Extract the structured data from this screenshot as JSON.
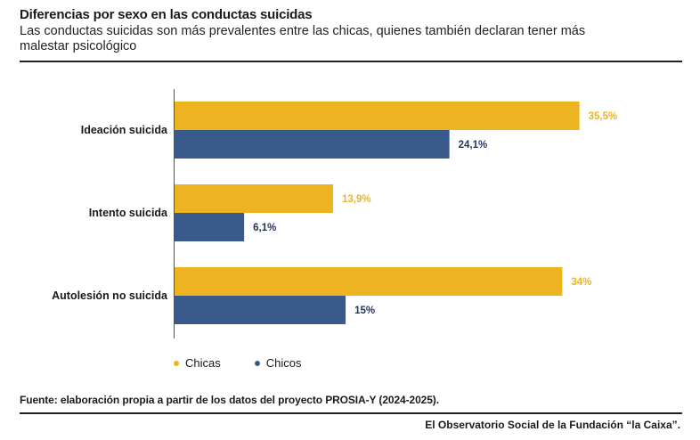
{
  "header": {
    "title": "Diferencias por sexo en las conductas suicidas",
    "subtitle": "Las conductas suicidas son más prevalentes entre las chicas, quienes también declaran tener más malestar psicológico"
  },
  "chart_data": {
    "type": "bar",
    "orientation": "horizontal",
    "categories": [
      "Ideación suicida",
      "Intento suicida",
      "Autolesión no suicida"
    ],
    "series": [
      {
        "name": "Chicas",
        "values": [
          35.5,
          13.9,
          34
        ],
        "labels": [
          "35,5%",
          "13,9%",
          "34%"
        ],
        "color": "#EDB321"
      },
      {
        "name": "Chicos",
        "values": [
          24.1,
          6.1,
          15
        ],
        "labels": [
          "24,1%",
          "6,1%",
          "15%"
        ],
        "color": "#3A5A8C"
      }
    ],
    "xlim": [
      0,
      36
    ],
    "grid": false,
    "legend_position": "bottom-left"
  },
  "footer": {
    "source": "Fuente: elaboración propia a partir de los datos del proyecto PROSIA-Y (2024-2025).",
    "credit": "El Observatorio Social de la Fundación “la Caixa”."
  },
  "colors": {
    "chicas": "#EDB321",
    "chicos": "#3A5A8C",
    "axis": "#555555"
  }
}
